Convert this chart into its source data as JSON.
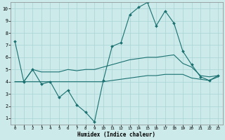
{
  "xlabel": "Humidex (Indice chaleur)",
  "x_ticks": [
    0,
    1,
    2,
    3,
    4,
    5,
    6,
    7,
    8,
    9,
    10,
    11,
    12,
    13,
    14,
    15,
    16,
    17,
    18,
    19,
    20,
    21,
    22,
    23
  ],
  "ylim": [
    0.5,
    10.5
  ],
  "xlim": [
    -0.5,
    23.5
  ],
  "yticks": [
    1,
    2,
    3,
    4,
    5,
    6,
    7,
    8,
    9,
    10
  ],
  "bg_color": "#cceaea",
  "grid_color": "#a8d4d4",
  "line_color": "#1a7070",
  "line1_x": [
    0,
    1,
    2,
    3,
    4,
    5,
    6,
    7,
    8,
    9,
    10,
    11,
    12,
    13,
    14,
    15,
    16,
    17,
    18,
    19,
    20,
    21,
    22,
    23
  ],
  "line1_y": [
    7.3,
    4.0,
    5.0,
    3.8,
    4.0,
    2.7,
    3.3,
    2.1,
    1.5,
    0.7,
    4.1,
    6.9,
    7.2,
    9.5,
    10.1,
    10.5,
    8.6,
    9.8,
    8.8,
    6.5,
    5.4,
    4.4,
    4.1,
    4.5
  ],
  "line2_x": [
    0,
    1,
    2,
    3,
    4,
    5,
    6,
    7,
    8,
    9,
    10,
    11,
    12,
    13,
    14,
    15,
    16,
    17,
    18,
    19,
    20,
    21,
    22,
    23
  ],
  "line2_y": [
    4.0,
    4.0,
    5.0,
    4.8,
    4.8,
    4.8,
    5.0,
    4.9,
    5.0,
    5.0,
    5.2,
    5.4,
    5.6,
    5.8,
    5.9,
    6.0,
    6.0,
    6.1,
    6.2,
    5.5,
    5.2,
    4.5,
    4.4,
    4.5
  ],
  "line3_x": [
    0,
    1,
    2,
    3,
    4,
    5,
    6,
    7,
    8,
    9,
    10,
    11,
    12,
    13,
    14,
    15,
    16,
    17,
    18,
    19,
    20,
    21,
    22,
    23
  ],
  "line3_y": [
    4.0,
    4.0,
    4.0,
    4.0,
    4.0,
    4.0,
    4.0,
    4.0,
    4.0,
    4.0,
    4.0,
    4.1,
    4.2,
    4.3,
    4.4,
    4.5,
    4.5,
    4.6,
    4.6,
    4.6,
    4.3,
    4.2,
    4.1,
    4.4
  ]
}
